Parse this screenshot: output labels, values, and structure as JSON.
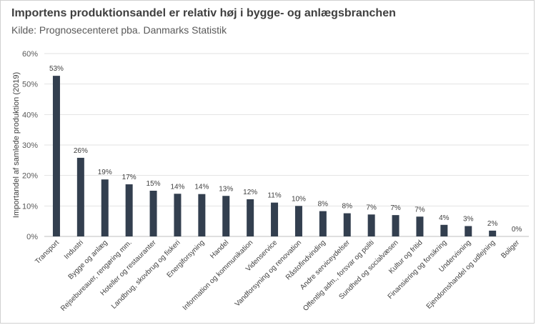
{
  "chart_data": {
    "type": "bar",
    "title": "Importens produktionsandel er relativ høj i bygge- og anlægsbranchen",
    "subtitle": "Kilde: Prognosecenteret pba. Danmarks Statistik",
    "ylabel": "Importandel af samlede produktion (2019)",
    "xlabel": "",
    "ylim": [
      0,
      60
    ],
    "yticks": [
      0,
      10,
      20,
      30,
      40,
      50,
      60
    ],
    "ytick_labels": [
      "0%",
      "10%",
      "20%",
      "30%",
      "40%",
      "50%",
      "60%"
    ],
    "grid": true,
    "legend": "none",
    "bar_color": "#333f4f",
    "categories": [
      "Transport",
      "Industri",
      "Bygge og anlæg",
      "Rejsebureauer, rengøring mm.",
      "Hoteller og restauranter",
      "Landbrug, skovbrug og fiskeri",
      "Energiforsyning",
      "Handel",
      "Information og kommunikation",
      "Videnservice",
      "Vandforsyning og renovation",
      "Råstofindvinding",
      "Andre serviceydelser",
      "Offentlig adm., forsvar og politi",
      "Sundhed og socialvæsen",
      "Kultur og fritid",
      "Finansiering og forsikring",
      "Undervisning",
      "Ejendomshandel og udlejning",
      "Boliger"
    ],
    "values": [
      52.7,
      25.8,
      18.7,
      17.1,
      15.0,
      14.0,
      13.9,
      13.3,
      12.2,
      11.1,
      10.0,
      8.3,
      7.6,
      7.2,
      7.0,
      6.5,
      3.8,
      3.4,
      1.9,
      0.0
    ],
    "data_labels": [
      "53%",
      "26%",
      "19%",
      "17%",
      "15%",
      "14%",
      "14%",
      "13%",
      "12%",
      "11%",
      "10%",
      "8%",
      "8%",
      "7%",
      "7%",
      "7%",
      "4%",
      "3%",
      "2%",
      "0%"
    ]
  }
}
